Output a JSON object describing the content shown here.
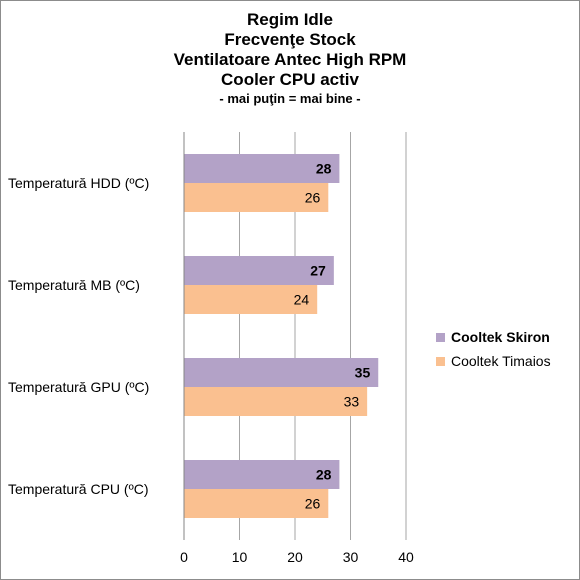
{
  "title_lines": [
    "Regim Idle",
    "Frecvenţe Stock",
    "Ventilatoare Antec High RPM",
    "Cooler CPU activ"
  ],
  "subtitle": "- mai puţin = mai bine -",
  "chart_data": {
    "type": "bar",
    "orientation": "horizontal",
    "categories": [
      "Temperatură  HDD (ºC)",
      "Temperatură  MB (ºC)",
      "Temperatură  GPU (ºC)",
      "Temperatură  CPU (ºC)"
    ],
    "series": [
      {
        "name": "Cooltek Skiron",
        "values": [
          28,
          27,
          35,
          28
        ],
        "color": "#b3a2c7",
        "label_bold": true
      },
      {
        "name": "Cooltek Timaios",
        "values": [
          26,
          24,
          33,
          26
        ],
        "color": "#fac090",
        "label_bold": false
      }
    ],
    "xlim": [
      0,
      40
    ],
    "xticks": [
      "0",
      "10",
      "20",
      "30",
      "40"
    ],
    "grid": true,
    "legend_position": "right",
    "data_labels": true
  }
}
